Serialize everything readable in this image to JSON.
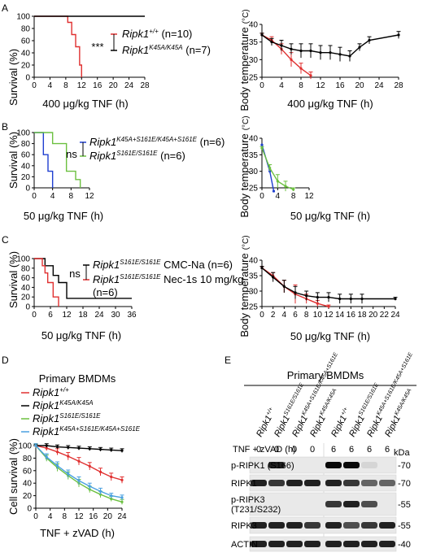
{
  "figure": {
    "panels": {
      "A": "A",
      "B": "B",
      "C": "C",
      "D": "D",
      "E": "E"
    },
    "unit_celsius": "(°C)"
  },
  "panel_a": {
    "surv_ylabel": "Survival (%)",
    "xlabel": "400 μg/kg TNF (h)",
    "sig": "***",
    "legend": [
      {
        "gene": "Ripk1",
        "sup": "+/+",
        "suffix": " (n=10)",
        "color": "#e03030"
      },
      {
        "gene": "Ripk1",
        "sup": "K45A/K45A",
        "suffix": " (n=7)",
        "color": "#000000"
      }
    ],
    "temp_ylabel": "Body temperature",
    "temp_xlabel": "400 μg/kg TNF (h)"
  },
  "panel_b": {
    "surv_ylabel": "Survival (%)",
    "xlabel": "50 μg/kg TNF (h)",
    "sig": "ns",
    "legend": [
      {
        "gene": "Ripk1",
        "sup": "K45A+S161E/K45A+S161E",
        "suffix": " (n=6)",
        "color": "#1f3fd0"
      },
      {
        "gene": "Ripk1",
        "sup": "S161E/S161E",
        "suffix": " (n=6)",
        "color": "#6cc040"
      }
    ],
    "temp_ylabel": "Body temperature",
    "temp_xlabel": "50 μg/kg TNF (h)"
  },
  "panel_c": {
    "surv_ylabel": "Survival (%)",
    "xlabel": "50 μg/kg TNF (h)",
    "sig": "ns",
    "legend": [
      {
        "gene": "Ripk1",
        "sup": "S161E/S161E",
        "suffix": " CMC-Na (n=6)",
        "color": "#000000"
      },
      {
        "gene": "Ripk1",
        "sup": "S161E/S161E",
        "suffix": " Nec-1s 10 mg/kg",
        "color": "#e03030"
      }
    ],
    "legend_extra": "(n=6)",
    "temp_ylabel": "Body temperature",
    "temp_xlabel": "50 μg/kg TNF (h)"
  },
  "panel_d": {
    "title": "Primary BMDMs",
    "ylabel": "Cell survival (%)",
    "xlabel": "TNF + zVAD (h)",
    "legend": [
      {
        "gene": "Ripk1",
        "sup": "+/+",
        "color": "#e03030"
      },
      {
        "gene": "Ripk1",
        "sup": "K45A/K45A",
        "color": "#000000"
      },
      {
        "gene": "Ripk1",
        "sup": "S161E/S161E",
        "color": "#6cc040"
      },
      {
        "gene": "Ripk1",
        "sup": "K45A+S161E/K45A+S161E",
        "color": "#4aa0e0"
      }
    ]
  },
  "panel_e": {
    "title": "Primary BMDMs",
    "lane_labels": [
      {
        "gene": "Ripk1",
        "sup": "+/+"
      },
      {
        "gene": "Ripk1",
        "sup": "S161E/S161E"
      },
      {
        "gene": "Ripk1",
        "sup": "K45A+S161E/K45A+S161E"
      },
      {
        "gene": "Ripk1",
        "sup": "K45A/K45A"
      },
      {
        "gene": "Ripk1",
        "sup": "+/+"
      },
      {
        "gene": "Ripk1",
        "sup": "S161E/S161E"
      },
      {
        "gene": "Ripk1",
        "sup": "K45A+S161E/K45A+S161E"
      },
      {
        "gene": "Ripk1",
        "sup": "K45A/K45A"
      }
    ],
    "treatment_label": "TNF + zVAD (h)",
    "treatment_values": [
      "0",
      "0",
      "0",
      "0",
      "6",
      "6",
      "6",
      "6"
    ],
    "kda": "kDa",
    "rows": [
      {
        "label": "p-RIPK1 (S166)",
        "marker": "-70"
      },
      {
        "label": "RIPK1",
        "marker": "-70"
      },
      {
        "label": "p-RIPK3",
        "label2": "(T231/S232)",
        "marker": "-55"
      },
      {
        "label": "RIPK3",
        "marker": "-55"
      },
      {
        "label": "ACTIN",
        "marker": "-40"
      }
    ]
  },
  "chart_data": [
    {
      "type": "line",
      "panel": "A-survival",
      "xlabel": "400 μg/kg TNF (h)",
      "ylabel": "Survival (%)",
      "xlim": [
        0,
        28
      ],
      "ylim": [
        0,
        100
      ],
      "xticks": [
        0,
        4,
        8,
        12,
        16,
        20,
        24,
        28
      ],
      "yticks": [
        0,
        20,
        40,
        60,
        80,
        100
      ],
      "series": [
        {
          "name": "Ripk1 +/+ (n=10)",
          "color": "#e03030",
          "step": true,
          "x": [
            0,
            8.5,
            9.5,
            10.5,
            11.5,
            12
          ],
          "y": [
            100,
            90,
            70,
            50,
            20,
            0
          ]
        },
        {
          "name": "Ripk1 K45A/K45A (n=7)",
          "color": "#000000",
          "step": true,
          "x": [
            0,
            28
          ],
          "y": [
            100,
            100
          ]
        }
      ]
    },
    {
      "type": "line",
      "panel": "A-temperature",
      "ylabel": "Body temperature (°C)",
      "xlabel": "400 μg/kg TNF (h)",
      "xlim": [
        0,
        28
      ],
      "ylim": [
        25,
        40
      ],
      "xticks": [
        0,
        4,
        8,
        12,
        16,
        20,
        24,
        28
      ],
      "yticks": [
        25,
        30,
        35,
        40
      ],
      "series": [
        {
          "color": "#e03030",
          "x": [
            0,
            2,
            4,
            6,
            8,
            10
          ],
          "y": [
            37,
            35.5,
            33,
            30,
            27.5,
            25.5
          ],
          "err": [
            0.5,
            1,
            1.5,
            2,
            1.5,
            1
          ]
        },
        {
          "color": "#000000",
          "x": [
            0,
            2,
            4,
            6,
            8,
            10,
            12,
            14,
            16,
            18,
            20,
            22,
            28
          ],
          "y": [
            37,
            35,
            34,
            33,
            32.5,
            32.5,
            32,
            32,
            31.5,
            31,
            33.5,
            35.5,
            37
          ],
          "err": [
            0.5,
            1,
            1.5,
            1.5,
            2,
            2,
            2,
            2,
            2,
            1.5,
            1,
            1,
            1
          ]
        }
      ]
    },
    {
      "type": "line",
      "panel": "B-survival",
      "xlabel": "50 μg/kg TNF (h)",
      "ylabel": "Survival (%)",
      "xlim": [
        0,
        12
      ],
      "ylim": [
        0,
        100
      ],
      "xticks": [
        0,
        4,
        8,
        12
      ],
      "yticks": [
        0,
        20,
        40,
        60,
        80,
        100
      ],
      "series": [
        {
          "name": "Ripk1 K45A+S161E/K45A+S161E (n=6)",
          "color": "#1f3fd0",
          "step": true,
          "x": [
            0,
            2,
            3,
            4
          ],
          "y": [
            100,
            60,
            30,
            0
          ]
        },
        {
          "name": "Ripk1 S161E/S161E (n=6)",
          "color": "#6cc040",
          "step": true,
          "x": [
            0,
            4,
            7,
            9,
            10
          ],
          "y": [
            100,
            80,
            30,
            15,
            0
          ]
        }
      ]
    },
    {
      "type": "line",
      "panel": "B-temperature",
      "ylabel": "Body temperature (°C)",
      "xlabel": "50 μg/kg TNF (h)",
      "xlim": [
        0,
        12
      ],
      "ylim": [
        25,
        40
      ],
      "xticks": [
        0,
        4,
        8,
        12
      ],
      "yticks": [
        25,
        30,
        35,
        40
      ],
      "series": [
        {
          "color": "#1f3fd0",
          "x": [
            0,
            2,
            3
          ],
          "y": [
            38,
            30,
            24
          ]
        },
        {
          "color": "#6cc040",
          "x": [
            0,
            2,
            4,
            6,
            8
          ],
          "y": [
            37,
            31,
            27,
            25.5,
            24.5
          ],
          "err": [
            0.5,
            1,
            2,
            1.5,
            0.5
          ]
        }
      ]
    },
    {
      "type": "line",
      "panel": "C-survival",
      "xlabel": "50 μg/kg TNF (h)",
      "ylabel": "Survival (%)",
      "xlim": [
        0,
        36
      ],
      "ylim": [
        0,
        100
      ],
      "xticks": [
        0,
        6,
        12,
        18,
        24,
        30,
        36
      ],
      "yticks": [
        0,
        20,
        40,
        60,
        80,
        100
      ],
      "series": [
        {
          "name": "Ripk1 S161E/S161E CMC-Na (n=6)",
          "color": "#000000",
          "step": true,
          "x": [
            0,
            4,
            7,
            9,
            12,
            36
          ],
          "y": [
            100,
            85,
            65,
            50,
            17,
            17
          ]
        },
        {
          "name": "Ripk1 S161E/S161E Nec-1s 10 mg/kg (n=6)",
          "color": "#e03030",
          "step": true,
          "x": [
            0,
            3,
            4,
            5,
            7,
            9
          ],
          "y": [
            100,
            85,
            70,
            50,
            20,
            0
          ]
        }
      ]
    },
    {
      "type": "line",
      "panel": "C-temperature",
      "ylabel": "Body temperature (°C)",
      "xlabel": "50 μg/kg TNF (h)",
      "xlim": [
        0,
        24
      ],
      "ylim": [
        25,
        40
      ],
      "xticks": [
        0,
        2,
        4,
        6,
        8,
        10,
        12,
        14,
        16,
        18,
        20,
        22,
        24
      ],
      "yticks": [
        25,
        30,
        35,
        40
      ],
      "series": [
        {
          "color": "#e03030",
          "x": [
            0,
            2,
            4,
            6,
            8,
            10,
            12
          ],
          "y": [
            37.5,
            35,
            31.5,
            29,
            27.5,
            26,
            25
          ],
          "err": [
            0.5,
            1,
            2,
            3,
            1.5,
            1,
            0.5
          ]
        },
        {
          "color": "#000000",
          "x": [
            0,
            2,
            4,
            6,
            8,
            10,
            12,
            14,
            16,
            18,
            24
          ],
          "y": [
            37.5,
            34.5,
            31.5,
            29.5,
            28.5,
            28,
            28,
            27.5,
            27.5,
            27.5,
            27.5
          ],
          "err": [
            0.5,
            1.5,
            2,
            2,
            1.5,
            1.5,
            1.5,
            1.5,
            1.5,
            1.5,
            0.5
          ]
        }
      ]
    },
    {
      "type": "line",
      "panel": "D",
      "title": "Primary BMDMs",
      "xlabel": "TNF + zVAD (h)",
      "ylabel": "Cell survival (%)",
      "xlim": [
        0,
        24
      ],
      "ylim": [
        0,
        100
      ],
      "xticks": [
        0,
        4,
        8,
        12,
        16,
        20,
        24
      ],
      "yticks": [
        0,
        20,
        40,
        60,
        80,
        100
      ],
      "series": [
        {
          "name": "Ripk1 +/+",
          "color": "#e03030",
          "x": [
            0,
            3,
            6,
            9,
            12,
            15,
            18,
            21,
            24
          ],
          "y": [
            100,
            96,
            90,
            83,
            75,
            67,
            58,
            50,
            45
          ],
          "err": [
            3,
            4,
            5,
            6,
            6,
            6,
            6,
            6,
            5
          ]
        },
        {
          "name": "Ripk1 K45A/K45A",
          "color": "#000000",
          "x": [
            0,
            3,
            6,
            9,
            12,
            15,
            18,
            21,
            24
          ],
          "y": [
            100,
            100,
            98,
            97,
            96,
            95,
            94,
            93,
            92
          ],
          "err": [
            2,
            3,
            3,
            3,
            3,
            3,
            3,
            3,
            3
          ]
        },
        {
          "name": "Ripk1 S161E/S161E",
          "color": "#6cc040",
          "x": [
            0,
            3,
            6,
            9,
            12,
            15,
            18,
            21,
            24
          ],
          "y": [
            100,
            80,
            65,
            52,
            40,
            30,
            22,
            15,
            10
          ],
          "err": [
            3,
            5,
            6,
            6,
            6,
            5,
            5,
            4,
            4
          ]
        },
        {
          "name": "Ripk1 K45A+S161E/K45A+S161E",
          "color": "#4aa0e0",
          "x": [
            0,
            3,
            6,
            9,
            12,
            15,
            18,
            21,
            24
          ],
          "y": [
            100,
            82,
            68,
            55,
            44,
            35,
            27,
            20,
            17
          ],
          "err": [
            3,
            5,
            6,
            6,
            6,
            5,
            5,
            4,
            4
          ]
        }
      ]
    }
  ]
}
